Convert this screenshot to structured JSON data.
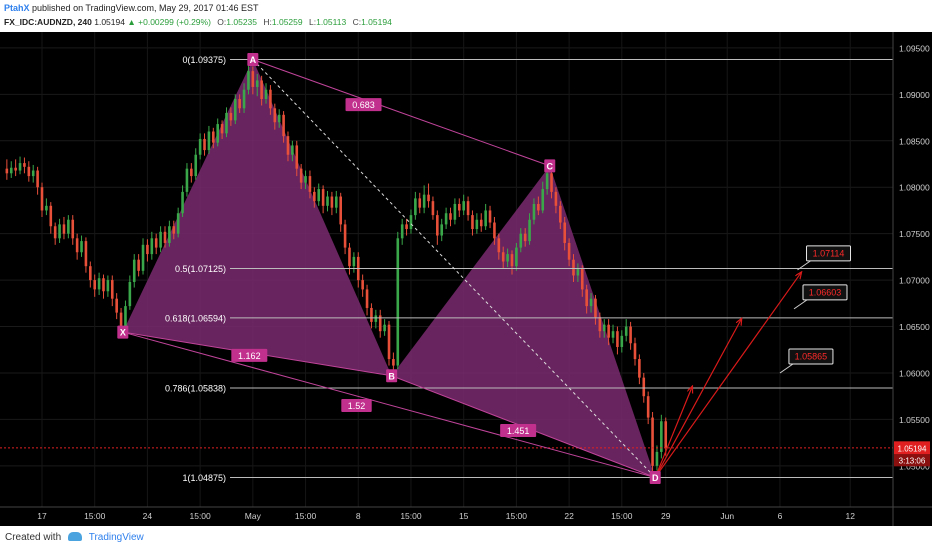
{
  "header": {
    "author": "PtahX",
    "published": "published on TradingView.com, May 29, 2017 01:46 EST",
    "symbol": "FX_IDC:AUDNZD, 240",
    "last": "1.05194",
    "change": "+0.00299 (+0.29%)",
    "ohlc": [
      {
        "k": "O:",
        "v": "1.05235"
      },
      {
        "k": "H:",
        "v": "1.05259"
      },
      {
        "k": "L:",
        "v": "1.05113"
      },
      {
        "k": "C:",
        "v": "1.05194"
      }
    ]
  },
  "footer": {
    "created_with": "Created with",
    "brand": "TradingView"
  },
  "colors": {
    "pattern_fill": "#7a2a6e",
    "pattern_line": "#c0449a",
    "label_bg": "#c2308e",
    "bull": "#3aa84a",
    "bear": "#e8503a",
    "projection": "#d91a1a",
    "fib_line": "#bcbcbc",
    "price_line": "#e02020"
  },
  "chart_data": {
    "type": "candlestick-harmonic",
    "ylim": [
      1.046,
      1.0965
    ],
    "x_ticks": [
      {
        "t": 0,
        "label": "17"
      },
      {
        "t": 3,
        "label": "15:00"
      },
      {
        "t": 6,
        "label": "24"
      },
      {
        "t": 9,
        "label": "15:00"
      },
      {
        "t": 12,
        "label": "May"
      },
      {
        "t": 15,
        "label": "15:00"
      },
      {
        "t": 18,
        "label": "8"
      },
      {
        "t": 21,
        "label": "15:00"
      },
      {
        "t": 24,
        "label": "15"
      },
      {
        "t": 27,
        "label": "15:00"
      },
      {
        "t": 30,
        "label": "22"
      },
      {
        "t": 33,
        "label": "15:00"
      },
      {
        "t": 35.5,
        "label": "29"
      },
      {
        "t": 39,
        "label": "Jun"
      },
      {
        "t": 42,
        "label": "6"
      },
      {
        "t": 46,
        "label": "12"
      }
    ],
    "y_ticks": [
      1.095,
      1.09,
      1.085,
      1.08,
      1.075,
      1.07,
      1.065,
      1.06,
      1.055,
      1.05
    ],
    "pattern_points": [
      {
        "name": "X",
        "t": 4.6,
        "price": 1.0644
      },
      {
        "name": "A",
        "t": 12.0,
        "price": 1.09375
      },
      {
        "name": "B",
        "t": 19.9,
        "price": 1.0597
      },
      {
        "name": "C",
        "t": 28.9,
        "price": 1.0823
      },
      {
        "name": "D",
        "t": 34.9,
        "price": 1.04875
      }
    ],
    "ratios": [
      {
        "label": "0.683",
        "t": 18.3,
        "price": 1.0889
      },
      {
        "label": "1.162",
        "t": 11.8,
        "price": 1.0619
      },
      {
        "label": "1.52",
        "t": 17.9,
        "price": 1.0565
      },
      {
        "label": "1.451",
        "t": 27.1,
        "price": 1.0538
      }
    ],
    "fib_levels": [
      {
        "label": "0(1.09375)",
        "price": 1.09375
      },
      {
        "label": "0.5(1.07125)",
        "price": 1.07125
      },
      {
        "label": "0.618(1.06594)",
        "price": 1.06594
      },
      {
        "label": "0.786(1.05838)",
        "price": 1.05838
      },
      {
        "label": "1(1.04875)",
        "price": 1.04875
      }
    ],
    "targets": [
      {
        "label": "1.07114",
        "t": 43.0,
        "price": 1.0711
      },
      {
        "label": "1.06603",
        "t": 42.8,
        "price": 1.0669
      },
      {
        "label": "1.05865",
        "t": 42.0,
        "price": 1.06
      }
    ],
    "projections": [
      {
        "t": 37.0,
        "price": 1.0585
      },
      {
        "t": 39.8,
        "price": 1.0658
      },
      {
        "t": 43.2,
        "price": 1.0708
      }
    ],
    "current_price": {
      "price": 1.05194,
      "label": "1.05194",
      "timer": "3:13:06"
    },
    "candles": [
      [
        -2.0,
        1.082,
        1.0815,
        1.083,
        1.0808
      ],
      [
        -1.75,
        1.0815,
        1.0821,
        1.0828,
        1.081
      ],
      [
        -1.5,
        1.0821,
        1.0818,
        1.083,
        1.0812
      ],
      [
        -1.25,
        1.0818,
        1.0826,
        1.0833,
        1.0814
      ],
      [
        -1.0,
        1.0826,
        1.0822,
        1.0832,
        1.0815
      ],
      [
        -0.75,
        1.0822,
        1.0812,
        1.0828,
        1.0806
      ],
      [
        -0.5,
        1.0812,
        1.0818,
        1.0824,
        1.0805
      ],
      [
        -0.25,
        1.0818,
        1.08,
        1.0822,
        1.0792
      ],
      [
        0.0,
        1.08,
        1.0775,
        1.0805,
        1.0768
      ],
      [
        0.25,
        1.0775,
        1.078,
        1.0788,
        1.077
      ],
      [
        0.5,
        1.078,
        1.0758,
        1.0784,
        1.075
      ],
      [
        0.75,
        1.0758,
        1.0745,
        1.0762,
        1.0738
      ],
      [
        1.0,
        1.0745,
        1.076,
        1.0766,
        1.074
      ],
      [
        1.25,
        1.076,
        1.075,
        1.0768,
        1.0744
      ],
      [
        1.5,
        1.075,
        1.0765,
        1.077,
        1.0745
      ],
      [
        1.75,
        1.0765,
        1.0745,
        1.077,
        1.0738
      ],
      [
        2.0,
        1.0745,
        1.073,
        1.075,
        1.0722
      ],
      [
        2.25,
        1.073,
        1.0742,
        1.0748,
        1.0725
      ],
      [
        2.5,
        1.0742,
        1.0715,
        1.0746,
        1.0708
      ],
      [
        2.75,
        1.0715,
        1.07,
        1.072,
        1.0692
      ],
      [
        3.0,
        1.07,
        1.069,
        1.0706,
        1.0682
      ],
      [
        3.25,
        1.069,
        1.0702,
        1.0708,
        1.0684
      ],
      [
        3.5,
        1.0702,
        1.0688,
        1.0706,
        1.068
      ],
      [
        3.75,
        1.0688,
        1.07,
        1.0705,
        1.0682
      ],
      [
        4.0,
        1.07,
        1.068,
        1.0705,
        1.0672
      ],
      [
        4.25,
        1.068,
        1.0665,
        1.0686,
        1.0658
      ],
      [
        4.5,
        1.0665,
        1.065,
        1.067,
        1.0642
      ],
      [
        4.75,
        1.065,
        1.0672,
        1.0678,
        1.0646
      ],
      [
        5.0,
        1.0672,
        1.0698,
        1.0705,
        1.0668
      ],
      [
        5.25,
        1.0698,
        1.0722,
        1.0728,
        1.0692
      ],
      [
        5.5,
        1.0722,
        1.071,
        1.0728,
        1.0704
      ],
      [
        5.75,
        1.071,
        1.0738,
        1.0745,
        1.0706
      ],
      [
        6.0,
        1.0738,
        1.0728,
        1.0744,
        1.072
      ],
      [
        6.25,
        1.0728,
        1.0745,
        1.0752,
        1.0722
      ],
      [
        6.5,
        1.0745,
        1.0735,
        1.075,
        1.0728
      ],
      [
        6.75,
        1.0735,
        1.0752,
        1.0758,
        1.073
      ],
      [
        7.0,
        1.0752,
        1.074,
        1.0758,
        1.0735
      ],
      [
        7.25,
        1.074,
        1.0758,
        1.0764,
        1.0736
      ],
      [
        7.5,
        1.0758,
        1.075,
        1.0764,
        1.0744
      ],
      [
        7.75,
        1.075,
        1.0772,
        1.0778,
        1.0746
      ],
      [
        8.0,
        1.0772,
        1.0795,
        1.0802,
        1.0768
      ],
      [
        8.25,
        1.0795,
        1.082,
        1.0826,
        1.079
      ],
      [
        8.5,
        1.082,
        1.0812,
        1.0826,
        1.0805
      ],
      [
        8.75,
        1.0812,
        1.0835,
        1.0842,
        1.0808
      ],
      [
        9.0,
        1.0835,
        1.0852,
        1.0858,
        1.083
      ],
      [
        9.25,
        1.0852,
        1.084,
        1.0858,
        1.0834
      ],
      [
        9.5,
        1.084,
        1.086,
        1.0866,
        1.0836
      ],
      [
        9.75,
        1.086,
        1.0848,
        1.0864,
        1.0842
      ],
      [
        10.0,
        1.0848,
        1.0868,
        1.0874,
        1.0844
      ],
      [
        10.25,
        1.0868,
        1.0858,
        1.0872,
        1.0852
      ],
      [
        10.5,
        1.0858,
        1.088,
        1.0886,
        1.0854
      ],
      [
        10.75,
        1.088,
        1.0872,
        1.0886,
        1.0866
      ],
      [
        11.0,
        1.0872,
        1.0895,
        1.09,
        1.0868
      ],
      [
        11.25,
        1.0895,
        1.0885,
        1.09,
        1.088
      ],
      [
        11.5,
        1.0885,
        1.0905,
        1.0912,
        1.088
      ],
      [
        11.75,
        1.0905,
        1.0925,
        1.0937,
        1.09
      ],
      [
        12.0,
        1.0925,
        1.0908,
        1.093,
        1.09
      ],
      [
        12.25,
        1.0908,
        1.0915,
        1.0922,
        1.0898
      ],
      [
        12.5,
        1.0915,
        1.0895,
        1.092,
        1.0888
      ],
      [
        12.75,
        1.0895,
        1.0905,
        1.0912,
        1.089
      ],
      [
        13.0,
        1.0905,
        1.0885,
        1.091,
        1.0878
      ],
      [
        13.25,
        1.0885,
        1.087,
        1.089,
        1.0862
      ],
      [
        13.5,
        1.087,
        1.0878,
        1.0884,
        1.0864
      ],
      [
        13.75,
        1.0878,
        1.0855,
        1.0882,
        1.0848
      ],
      [
        14.0,
        1.0855,
        1.0835,
        1.086,
        1.0828
      ],
      [
        14.25,
        1.0835,
        1.0845,
        1.085,
        1.0828
      ],
      [
        14.5,
        1.0845,
        1.082,
        1.085,
        1.0812
      ],
      [
        14.75,
        1.082,
        1.0805,
        1.0825,
        1.0798
      ],
      [
        15.0,
        1.0805,
        1.0812,
        1.0818,
        1.0798
      ],
      [
        15.25,
        1.0812,
        1.0795,
        1.0818,
        1.0788
      ],
      [
        15.5,
        1.0795,
        1.0785,
        1.08,
        1.0778
      ],
      [
        15.75,
        1.0785,
        1.0798,
        1.0804,
        1.078
      ],
      [
        16.0,
        1.0798,
        1.078,
        1.0802,
        1.0772
      ],
      [
        16.25,
        1.078,
        1.079,
        1.0796,
        1.0774
      ],
      [
        16.5,
        1.079,
        1.0778,
        1.0795,
        1.077
      ],
      [
        16.75,
        1.0778,
        1.079,
        1.0796,
        1.0772
      ],
      [
        17.0,
        1.079,
        1.076,
        1.0794,
        1.0752
      ],
      [
        17.25,
        1.076,
        1.0735,
        1.0765,
        1.0728
      ],
      [
        17.5,
        1.0735,
        1.0715,
        1.074,
        1.0706
      ],
      [
        17.75,
        1.0715,
        1.0725,
        1.073,
        1.0708
      ],
      [
        18.0,
        1.0725,
        1.07,
        1.073,
        1.0692
      ],
      [
        18.25,
        1.07,
        1.069,
        1.0706,
        1.0682
      ],
      [
        18.5,
        1.069,
        1.067,
        1.0695,
        1.0662
      ],
      [
        18.75,
        1.067,
        1.0655,
        1.0675,
        1.0648
      ],
      [
        19.0,
        1.0655,
        1.0662,
        1.0668,
        1.0648
      ],
      [
        19.25,
        1.0662,
        1.0645,
        1.0668,
        1.0638
      ],
      [
        19.5,
        1.0645,
        1.0652,
        1.0658,
        1.064
      ],
      [
        19.75,
        1.0652,
        1.0615,
        1.0656,
        1.0608
      ],
      [
        20.0,
        1.0615,
        1.0608,
        1.0622,
        1.0598
      ],
      [
        20.25,
        1.0608,
        1.0745,
        1.0752,
        1.0604
      ],
      [
        20.5,
        1.0745,
        1.076,
        1.0766,
        1.0738
      ],
      [
        20.75,
        1.076,
        1.0755,
        1.0766,
        1.0748
      ],
      [
        21.0,
        1.0755,
        1.077,
        1.0776,
        1.075
      ],
      [
        21.25,
        1.077,
        1.0788,
        1.0795,
        1.0765
      ],
      [
        21.5,
        1.0788,
        1.0778,
        1.0794,
        1.0772
      ],
      [
        21.75,
        1.0778,
        1.0792,
        1.0802,
        1.0772
      ],
      [
        22.0,
        1.0792,
        1.0785,
        1.0804,
        1.0778
      ],
      [
        22.25,
        1.0785,
        1.077,
        1.079,
        1.0765
      ],
      [
        22.5,
        1.077,
        1.0748,
        1.0775,
        1.0738
      ],
      [
        22.75,
        1.0748,
        1.076,
        1.0766,
        1.0742
      ],
      [
        23.0,
        1.076,
        1.0772,
        1.0778,
        1.0755
      ],
      [
        23.25,
        1.0772,
        1.0765,
        1.0778,
        1.0758
      ],
      [
        23.5,
        1.0765,
        1.0782,
        1.0788,
        1.076
      ],
      [
        23.75,
        1.0782,
        1.0775,
        1.0788,
        1.0768
      ],
      [
        24.0,
        1.0775,
        1.0785,
        1.0792,
        1.077
      ],
      [
        24.25,
        1.0785,
        1.077,
        1.079,
        1.0764
      ],
      [
        24.5,
        1.077,
        1.0755,
        1.0775,
        1.0748
      ],
      [
        24.75,
        1.0755,
        1.0765,
        1.0772,
        1.075
      ],
      [
        25.0,
        1.0765,
        1.0758,
        1.0772,
        1.0752
      ],
      [
        25.25,
        1.0758,
        1.0775,
        1.0782,
        1.0754
      ],
      [
        25.5,
        1.0775,
        1.0762,
        1.078,
        1.0756
      ],
      [
        25.75,
        1.0762,
        1.0745,
        1.0768,
        1.0738
      ],
      [
        26.0,
        1.0745,
        1.073,
        1.075,
        1.0722
      ],
      [
        26.25,
        1.073,
        1.072,
        1.0736,
        1.0712
      ],
      [
        26.5,
        1.072,
        1.0728,
        1.0734,
        1.0714
      ],
      [
        26.75,
        1.0728,
        1.0715,
        1.0732,
        1.0706
      ],
      [
        27.0,
        1.0715,
        1.0735,
        1.074,
        1.071
      ],
      [
        27.25,
        1.0735,
        1.075,
        1.0756,
        1.073
      ],
      [
        27.5,
        1.075,
        1.0742,
        1.0756,
        1.0736
      ],
      [
        27.75,
        1.0742,
        1.0765,
        1.0772,
        1.0738
      ],
      [
        28.0,
        1.0765,
        1.0782,
        1.0788,
        1.076
      ],
      [
        28.25,
        1.0782,
        1.0775,
        1.079,
        1.077
      ],
      [
        28.5,
        1.0775,
        1.0798,
        1.0806,
        1.0772
      ],
      [
        28.75,
        1.0798,
        1.0815,
        1.0823,
        1.0792
      ],
      [
        29.0,
        1.0815,
        1.0795,
        1.082,
        1.0788
      ],
      [
        29.25,
        1.0795,
        1.078,
        1.08,
        1.0772
      ],
      [
        29.5,
        1.078,
        1.0762,
        1.0785,
        1.0755
      ],
      [
        29.75,
        1.0762,
        1.074,
        1.0768,
        1.0732
      ],
      [
        30.0,
        1.074,
        1.0722,
        1.0745,
        1.0715
      ],
      [
        30.25,
        1.0722,
        1.0705,
        1.0728,
        1.0698
      ],
      [
        30.5,
        1.0705,
        1.0712,
        1.0718,
        1.0698
      ],
      [
        30.75,
        1.0712,
        1.069,
        1.0716,
        1.0682
      ],
      [
        31.0,
        1.069,
        1.0672,
        1.0695,
        1.0664
      ],
      [
        31.25,
        1.0672,
        1.068,
        1.0686,
        1.0665
      ],
      [
        31.5,
        1.068,
        1.066,
        1.0684,
        1.0652
      ],
      [
        31.75,
        1.066,
        1.0645,
        1.0665,
        1.0638
      ],
      [
        32.0,
        1.0645,
        1.0652,
        1.0658,
        1.0638
      ],
      [
        32.25,
        1.0652,
        1.0638,
        1.0658,
        1.063
      ],
      [
        32.5,
        1.0638,
        1.0645,
        1.0652,
        1.0632
      ],
      [
        32.75,
        1.0645,
        1.0628,
        1.065,
        1.062
      ],
      [
        33.0,
        1.0628,
        1.064,
        1.0646,
        1.0622
      ],
      [
        33.25,
        1.064,
        1.065,
        1.0658,
        1.0634
      ],
      [
        33.5,
        1.065,
        1.0632,
        1.0655,
        1.0625
      ],
      [
        33.75,
        1.0632,
        1.0615,
        1.0638,
        1.0608
      ],
      [
        34.0,
        1.0615,
        1.0595,
        1.062,
        1.0588
      ],
      [
        34.25,
        1.0595,
        1.0575,
        1.06,
        1.0568
      ],
      [
        34.5,
        1.0575,
        1.0552,
        1.058,
        1.0545
      ],
      [
        34.75,
        1.0552,
        1.05,
        1.0558,
        1.04875
      ],
      [
        35.0,
        1.05,
        1.0515,
        1.0522,
        1.0495
      ],
      [
        35.25,
        1.0515,
        1.0548,
        1.0555,
        1.0508
      ],
      [
        35.5,
        1.0548,
        1.05194,
        1.0552,
        1.0511
      ]
    ]
  }
}
